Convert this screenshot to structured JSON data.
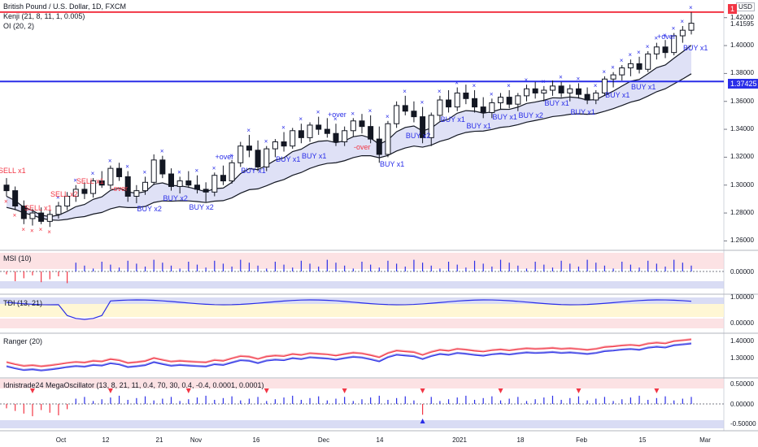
{
  "chart_data": {
    "type": "candlestick",
    "title": "British Pound / U.S. Dollar, 1D, FXCM",
    "currency": "USD",
    "indicators_main": [
      "Kenji (21, 8, 11, 1, 0.005)",
      "OI (20, 2)"
    ],
    "price_axis": {
      "ticks": [
        "1.42000",
        "1.40000",
        "1.38000",
        "1.36000",
        "1.34000",
        "1.32000",
        "1.30000",
        "1.28000",
        "1.26000"
      ],
      "range": [
        1.255,
        1.428
      ]
    },
    "horizontal_lines": [
      {
        "name": "red-level",
        "value": 1.424,
        "color": "#f23645",
        "label": "1"
      },
      {
        "name": "blue-level",
        "value": 1.37425,
        "color": "#2a2ee8",
        "label": "1.37425"
      }
    ],
    "last_price": "1.41595",
    "x_labels": [
      "Oct",
      "12",
      "21",
      "Nov",
      "16",
      "Dec",
      "14",
      "2021",
      "18",
      "Feb",
      "15",
      "Mar"
    ],
    "ohlc": [
      [
        1.3,
        1.305,
        1.292,
        1.296
      ],
      [
        1.296,
        1.299,
        1.282,
        1.285
      ],
      [
        1.285,
        1.289,
        1.272,
        1.276
      ],
      [
        1.276,
        1.283,
        1.271,
        1.28
      ],
      [
        1.28,
        1.284,
        1.272,
        1.274
      ],
      [
        1.274,
        1.282,
        1.27,
        1.279
      ],
      [
        1.279,
        1.288,
        1.276,
        1.285
      ],
      [
        1.285,
        1.295,
        1.282,
        1.292
      ],
      [
        1.292,
        1.3,
        1.288,
        1.297
      ],
      [
        1.297,
        1.302,
        1.29,
        1.294
      ],
      [
        1.294,
        1.305,
        1.291,
        1.303
      ],
      [
        1.303,
        1.31,
        1.298,
        1.3
      ],
      [
        1.3,
        1.314,
        1.297,
        1.312
      ],
      [
        1.312,
        1.316,
        1.303,
        1.306
      ],
      [
        1.306,
        1.31,
        1.288,
        1.292
      ],
      [
        1.292,
        1.3,
        1.287,
        1.296
      ],
      [
        1.296,
        1.306,
        1.293,
        1.302
      ],
      [
        1.302,
        1.322,
        1.3,
        1.318
      ],
      [
        1.318,
        1.321,
        1.305,
        1.308
      ],
      [
        1.308,
        1.312,
        1.296,
        1.299
      ],
      [
        1.299,
        1.306,
        1.294,
        1.303
      ],
      [
        1.303,
        1.31,
        1.298,
        1.3
      ],
      [
        1.3,
        1.307,
        1.294,
        1.297
      ],
      [
        1.297,
        1.302,
        1.288,
        1.295
      ],
      [
        1.295,
        1.309,
        1.292,
        1.307
      ],
      [
        1.307,
        1.314,
        1.3,
        1.303
      ],
      [
        1.303,
        1.318,
        1.301,
        1.316
      ],
      [
        1.316,
        1.331,
        1.313,
        1.328
      ],
      [
        1.328,
        1.336,
        1.32,
        1.325
      ],
      [
        1.325,
        1.332,
        1.31,
        1.313
      ],
      [
        1.313,
        1.328,
        1.31,
        1.326
      ],
      [
        1.326,
        1.333,
        1.32,
        1.331
      ],
      [
        1.331,
        1.338,
        1.324,
        1.328
      ],
      [
        1.328,
        1.341,
        1.326,
        1.339
      ],
      [
        1.339,
        1.344,
        1.33,
        1.334
      ],
      [
        1.334,
        1.345,
        1.331,
        1.343
      ],
      [
        1.343,
        1.349,
        1.336,
        1.34
      ],
      [
        1.34,
        1.348,
        1.334,
        1.337
      ],
      [
        1.337,
        1.344,
        1.328,
        1.331
      ],
      [
        1.331,
        1.342,
        1.328,
        1.339
      ],
      [
        1.339,
        1.348,
        1.335,
        1.346
      ],
      [
        1.346,
        1.351,
        1.337,
        1.342
      ],
      [
        1.342,
        1.35,
        1.33,
        1.333
      ],
      [
        1.333,
        1.342,
        1.316,
        1.322
      ],
      [
        1.322,
        1.346,
        1.32,
        1.344
      ],
      [
        1.344,
        1.36,
        1.341,
        1.357
      ],
      [
        1.357,
        1.364,
        1.35,
        1.353
      ],
      [
        1.353,
        1.36,
        1.345,
        1.349
      ],
      [
        1.349,
        1.356,
        1.33,
        1.334
      ],
      [
        1.334,
        1.352,
        1.328,
        1.35
      ],
      [
        1.35,
        1.364,
        1.346,
        1.361
      ],
      [
        1.361,
        1.368,
        1.352,
        1.356
      ],
      [
        1.356,
        1.37,
        1.353,
        1.366
      ],
      [
        1.366,
        1.372,
        1.358,
        1.362
      ],
      [
        1.362,
        1.368,
        1.352,
        1.356
      ],
      [
        1.356,
        1.363,
        1.348,
        1.352
      ],
      [
        1.352,
        1.362,
        1.348,
        1.359
      ],
      [
        1.359,
        1.366,
        1.354,
        1.363
      ],
      [
        1.363,
        1.368,
        1.355,
        1.358
      ],
      [
        1.358,
        1.366,
        1.353,
        1.364
      ],
      [
        1.364,
        1.372,
        1.36,
        1.369
      ],
      [
        1.369,
        1.374,
        1.362,
        1.366
      ],
      [
        1.366,
        1.371,
        1.36,
        1.368
      ],
      [
        1.368,
        1.375,
        1.364,
        1.371
      ],
      [
        1.371,
        1.374,
        1.363,
        1.366
      ],
      [
        1.366,
        1.372,
        1.36,
        1.369
      ],
      [
        1.369,
        1.373,
        1.362,
        1.365
      ],
      [
        1.365,
        1.37,
        1.358,
        1.361
      ],
      [
        1.361,
        1.368,
        1.358,
        1.366
      ],
      [
        1.366,
        1.378,
        1.364,
        1.376
      ],
      [
        1.376,
        1.381,
        1.37,
        1.379
      ],
      [
        1.379,
        1.386,
        1.375,
        1.384
      ],
      [
        1.384,
        1.39,
        1.378,
        1.387
      ],
      [
        1.387,
        1.392,
        1.38,
        1.383
      ],
      [
        1.383,
        1.396,
        1.381,
        1.394
      ],
      [
        1.394,
        1.402,
        1.39,
        1.399
      ],
      [
        1.399,
        1.404,
        1.391,
        1.395
      ],
      [
        1.395,
        1.409,
        1.393,
        1.407
      ],
      [
        1.407,
        1.414,
        1.402,
        1.411
      ],
      [
        1.411,
        1.424,
        1.408,
        1.416
      ]
    ],
    "signals": [
      "SELL x1",
      "SELL x1",
      "SELL x2",
      "SELL x1",
      "-over",
      "BUY x2",
      "BUY x2",
      "BUY x2",
      "+over",
      "BUY x1",
      "BUY x1",
      "BUY x1",
      "+over",
      "-over",
      "BUY x1",
      "BUY x2",
      "BUY x1",
      "BUY x1",
      "BUY x1",
      "BUY x2",
      "BUY x1",
      "BUY x1",
      "BUY x1",
      "BUY x1",
      "+over",
      "BUY x1"
    ],
    "panes": [
      {
        "name": "MSI (10)",
        "ticks": [
          "0.00000"
        ]
      },
      {
        "name": "TDI (13, 21)",
        "ticks": [
          "1.00000",
          "0.00000"
        ]
      },
      {
        "name": "Ranger (20)",
        "ticks": [
          "1.40000",
          "1.30000"
        ]
      },
      {
        "name": "Idnistrade24 MegaOscillator (13, 8, 21, 11, 0.4, 70, 30, 0.4, -0.4, 0.0001, 0.0001)",
        "ticks": [
          "0.50000",
          "0.00000",
          "-0.50000"
        ]
      }
    ]
  }
}
